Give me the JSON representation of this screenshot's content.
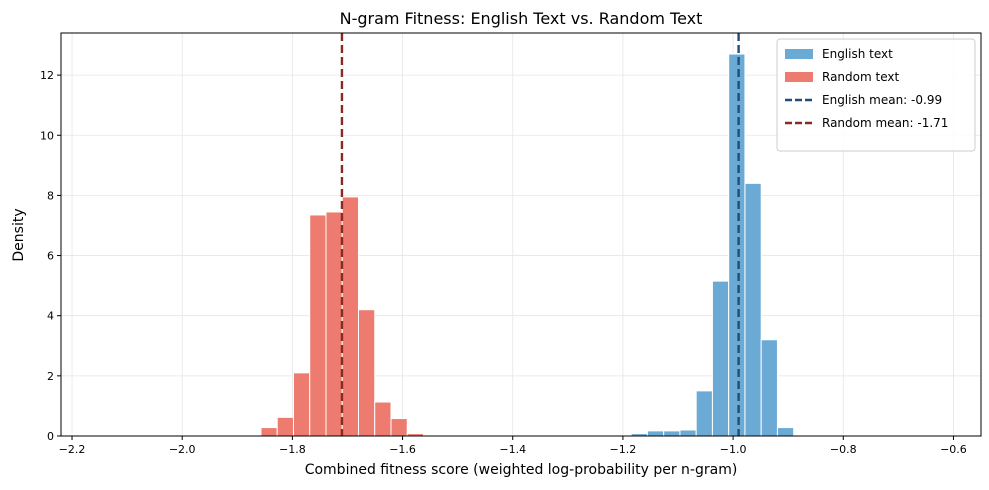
{
  "chart_data": {
    "type": "bar",
    "title": "N-gram Fitness: English Text vs. Random Text",
    "xlabel": "Combined fitness score (weighted log-probability per n-gram)",
    "ylabel": "Density",
    "xlim": [
      -2.22,
      -0.55
    ],
    "ylim": [
      0,
      13.4
    ],
    "xticks": [
      -2.2,
      -2.0,
      -1.8,
      -1.6,
      -1.4,
      -1.2,
      -1.0,
      -0.8,
      -0.6
    ],
    "xtick_labels": [
      "−2.2",
      "−2.0",
      "−1.8",
      "−1.6",
      "−1.4",
      "−1.2",
      "−1.0",
      "−0.8",
      "−0.6"
    ],
    "yticks": [
      0,
      2,
      4,
      6,
      8,
      10,
      12
    ],
    "ytick_labels": [
      "0",
      "2",
      "4",
      "6",
      "8",
      "10",
      "12"
    ],
    "grid": true,
    "legend_position": "top-right",
    "bin_width": 0.0295,
    "series": [
      {
        "name": "English text",
        "color": "#6aaad5",
        "bins": [
          {
            "x0": -1.185,
            "value": 0.08
          },
          {
            "x0": -1.1555,
            "value": 0.17
          },
          {
            "x0": -1.126,
            "value": 0.17
          },
          {
            "x0": -1.0965,
            "value": 0.2
          },
          {
            "x0": -1.067,
            "value": 1.5
          },
          {
            "x0": -1.0375,
            "value": 5.15
          },
          {
            "x0": -1.008,
            "value": 12.7
          },
          {
            "x0": -0.9785,
            "value": 8.4
          },
          {
            "x0": -0.949,
            "value": 3.2
          },
          {
            "x0": -0.9195,
            "value": 0.28
          }
        ]
      },
      {
        "name": "Random text",
        "color": "#ee7b6f",
        "bins": [
          {
            "x0": -1.857,
            "value": 0.28
          },
          {
            "x0": -1.8275,
            "value": 0.62
          },
          {
            "x0": -1.798,
            "value": 2.1
          },
          {
            "x0": -1.7685,
            "value": 7.35
          },
          {
            "x0": -1.739,
            "value": 7.45
          },
          {
            "x0": -1.7095,
            "value": 7.95
          },
          {
            "x0": -1.68,
            "value": 4.2
          },
          {
            "x0": -1.6505,
            "value": 1.13
          },
          {
            "x0": -1.621,
            "value": 0.58
          },
          {
            "x0": -1.5915,
            "value": 0.08
          }
        ]
      }
    ],
    "mean_lines": [
      {
        "name": "English mean: -0.99",
        "x": -0.99,
        "color": "#1f4e79"
      },
      {
        "name": "Random mean: -1.71",
        "x": -1.71,
        "color": "#8b2a22"
      }
    ]
  }
}
